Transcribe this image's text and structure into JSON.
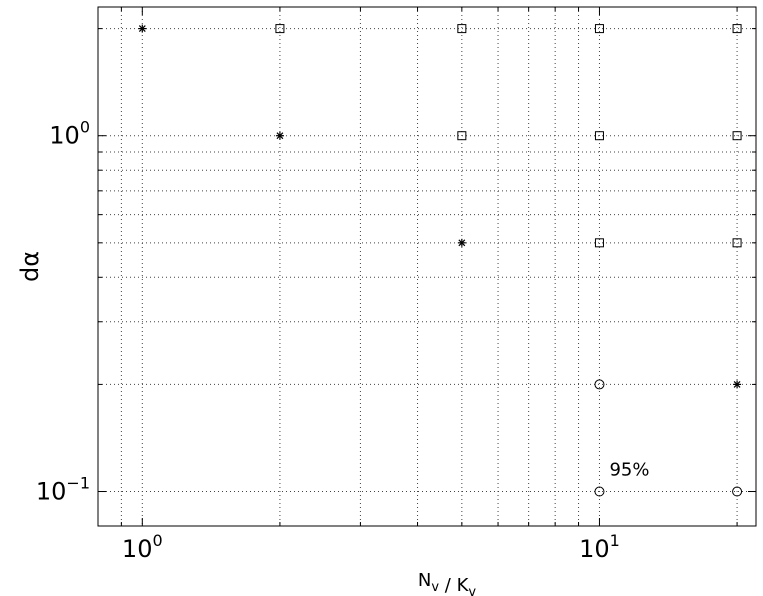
{
  "chart_data": {
    "type": "scatter",
    "title": "",
    "xlabel": "N_v / K_v",
    "ylabel": "dα",
    "xscale": "log",
    "yscale": "log",
    "xlim": [
      0.8,
      22
    ],
    "ylim": [
      0.08,
      2.3
    ],
    "grid": true,
    "legend": "none",
    "x_tick_labels": [
      {
        "value": 1,
        "base": "10",
        "exp": "0"
      },
      {
        "value": 10,
        "base": "10",
        "exp": "1"
      }
    ],
    "y_tick_labels": [
      {
        "value": 0.1,
        "base": "10",
        "exp": "−1"
      },
      {
        "value": 1,
        "base": "10",
        "exp": "0"
      }
    ],
    "series": [
      {
        "marker": "star",
        "points": [
          {
            "x": 1,
            "y": 2
          },
          {
            "x": 2,
            "y": 1
          },
          {
            "x": 5,
            "y": 0.5
          },
          {
            "x": 20,
            "y": 0.2
          }
        ]
      },
      {
        "marker": "square",
        "points": [
          {
            "x": 2,
            "y": 2
          },
          {
            "x": 5,
            "y": 2
          },
          {
            "x": 10,
            "y": 2
          },
          {
            "x": 20,
            "y": 2
          },
          {
            "x": 5,
            "y": 1
          },
          {
            "x": 10,
            "y": 1
          },
          {
            "x": 20,
            "y": 1
          },
          {
            "x": 10,
            "y": 0.5
          },
          {
            "x": 20,
            "y": 0.5
          }
        ]
      },
      {
        "marker": "circle",
        "points": [
          {
            "x": 10,
            "y": 0.2
          },
          {
            "x": 10,
            "y": 0.1
          },
          {
            "x": 20,
            "y": 0.1
          }
        ]
      }
    ],
    "annotations": [
      {
        "text": "95%",
        "x": 10,
        "y": 0.1
      }
    ]
  }
}
